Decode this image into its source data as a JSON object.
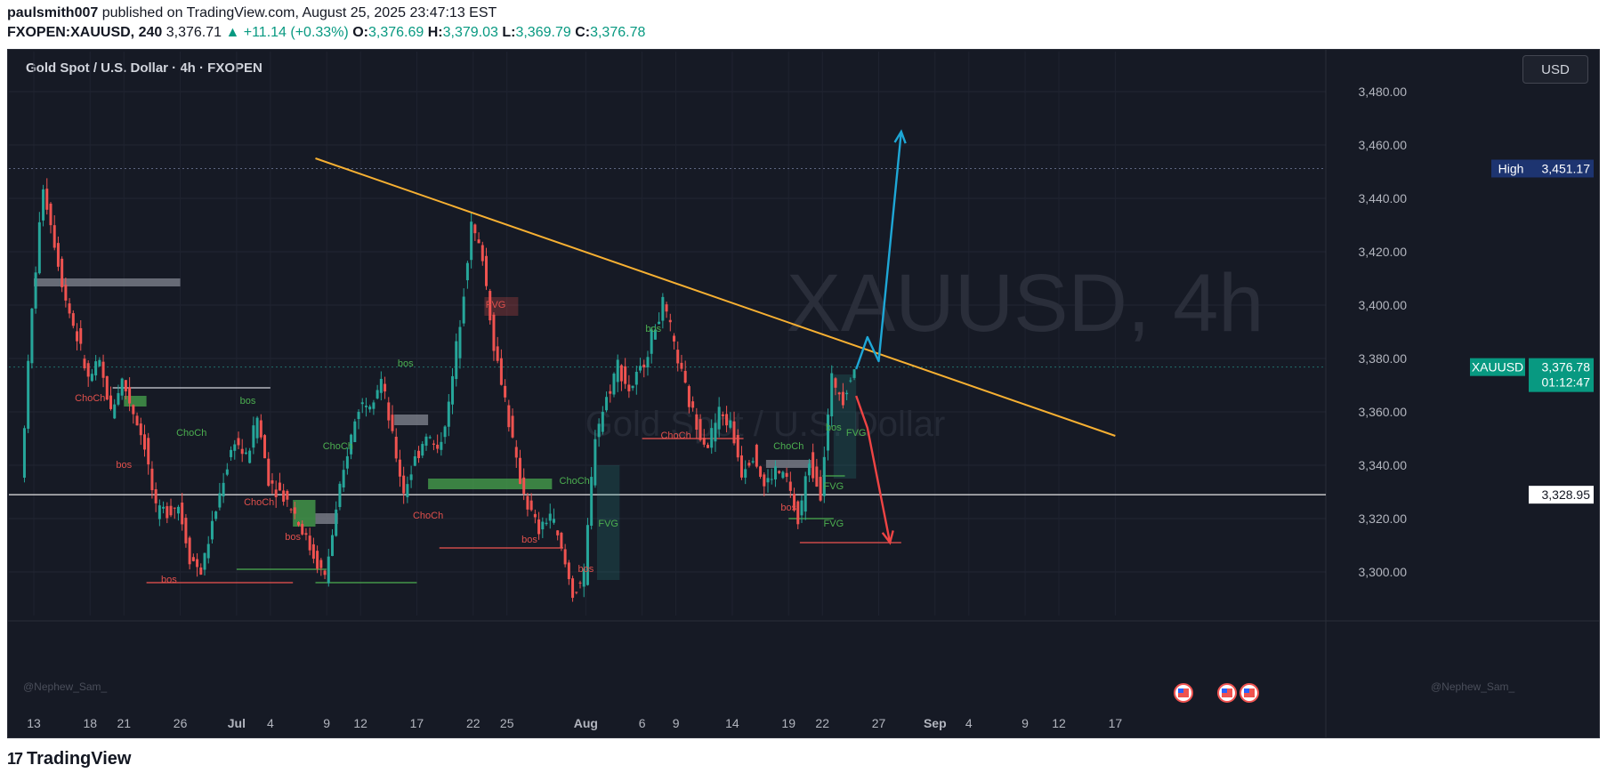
{
  "header": {
    "author": "paulsmith007",
    "published_text": "published on TradingView.com, August 25, 2025 23:47:13 EST",
    "symbol": "FXOPEN:XAUUSD, 240",
    "last": "3,376.71",
    "change": "▲ +11.14 (+0.33%)",
    "o_label": "O:",
    "o_val": "3,376.69",
    "h_label": "H:",
    "h_val": "3,379.03",
    "l_label": "L:",
    "l_val": "3,369.79",
    "c_label": "C:",
    "c_val": "3,376.78"
  },
  "chart_title": "Gold Spot / U.S. Dollar · 4h · FXOPEN",
  "currency_button": "USD",
  "watermark": {
    "symbol": "XAUUSD, 4h",
    "name": "Gold Spot / U.S. Dollar"
  },
  "author_tag_left": "@Nephew_Sam_",
  "author_tag_right": "@Nephew_Sam_",
  "footer": {
    "brand": "TradingView"
  },
  "colors": {
    "background": "#161a25",
    "up": "#26a69a",
    "down": "#ef5350",
    "trendline": "#f7b032",
    "arrow_up": "#1ea7d6",
    "arrow_down": "#ef4444",
    "structure_green": "#4caf50",
    "structure_red": "#e0504c"
  },
  "chart_data": {
    "type": "candlestick",
    "title": "Gold Spot / U.S. Dollar · 4h · FXOPEN",
    "y_axis": {
      "ticks": [
        3300,
        3320,
        3340,
        3360,
        3380,
        3400,
        3420,
        3440,
        3460,
        3480
      ],
      "tick_labels": [
        "3,300.00",
        "3,320.00",
        "3,340.00",
        "3,360.00",
        "3,380.00",
        "3,400.00",
        "3,420.00",
        "3,440.00",
        "3,460.00",
        "3,480.00"
      ],
      "range": [
        3290,
        3486
      ]
    },
    "x_axis": {
      "tick_labels": [
        "13",
        "18",
        "21",
        "26",
        "Jul",
        "4",
        "9",
        "12",
        "17",
        "22",
        "25",
        "Aug",
        "6",
        "9",
        "14",
        "19",
        "22",
        "27",
        "Sep",
        "4",
        "9",
        "12",
        "17"
      ],
      "range": [
        "Jun 12",
        "Sep 17"
      ]
    },
    "labels": {
      "high": {
        "text": "High",
        "value": "3,451.17"
      },
      "last_price": {
        "symbol": "XAUUSD",
        "value": "3,376.78",
        "countdown": "01:12:47"
      },
      "level": {
        "value": "3,328.95"
      }
    },
    "price_path": [
      [
        "Jun 12",
        3335
      ],
      [
        "Jun 13",
        3398
      ],
      [
        "Jun 14",
        3445
      ],
      [
        "Jun 16",
        3402
      ],
      [
        "Jun 17",
        3388
      ],
      [
        "Jun 18",
        3372
      ],
      [
        "Jun 19",
        3378
      ],
      [
        "Jun 20",
        3360
      ],
      [
        "Jun 21",
        3372
      ],
      [
        "Jun 23",
        3348
      ],
      [
        "Jun 24",
        3322
      ],
      [
        "Jun 26",
        3325
      ],
      [
        "Jun 27",
        3306
      ],
      [
        "Jun 28",
        3300
      ],
      [
        "Jun 30",
        3335
      ],
      [
        "Jul 1",
        3350
      ],
      [
        "Jul 2",
        3342
      ],
      [
        "Jul 3",
        3358
      ],
      [
        "Jul 4",
        3335
      ],
      [
        "Jul 6",
        3325
      ],
      [
        "Jul 8",
        3306
      ],
      [
        "Jul 9",
        3298
      ],
      [
        "Jul 10",
        3322
      ],
      [
        "Jul 11",
        3345
      ],
      [
        "Jul 12",
        3362
      ],
      [
        "Jul 13",
        3365
      ],
      [
        "Jul 14",
        3372
      ],
      [
        "Jul 15",
        3350
      ],
      [
        "Jul 16",
        3330
      ],
      [
        "Jul 17",
        3342
      ],
      [
        "Jul 18",
        3352
      ],
      [
        "Jul 19",
        3345
      ],
      [
        "Jul 20",
        3362
      ],
      [
        "Jul 21",
        3395
      ],
      [
        "Jul 22",
        3430
      ],
      [
        "Jul 23",
        3418
      ],
      [
        "Jul 24",
        3385
      ],
      [
        "Jul 25",
        3365
      ],
      [
        "Jul 26",
        3340
      ],
      [
        "Jul 27",
        3325
      ],
      [
        "Jul 28",
        3315
      ],
      [
        "Jul 29",
        3322
      ],
      [
        "Jul 30",
        3308
      ],
      [
        "Jul 31",
        3292
      ],
      [
        "Aug 1",
        3298
      ],
      [
        "Aug 2",
        3352
      ],
      [
        "Aug 3",
        3365
      ],
      [
        "Aug 4",
        3378
      ],
      [
        "Aug 5",
        3368
      ],
      [
        "Aug 6",
        3375
      ],
      [
        "Aug 7",
        3388
      ],
      [
        "Aug 8",
        3400
      ],
      [
        "Aug 9",
        3385
      ],
      [
        "Aug 10",
        3368
      ],
      [
        "Aug 11",
        3355
      ],
      [
        "Aug 12",
        3348
      ],
      [
        "Aug 13",
        3360
      ],
      [
        "Aug 14",
        3355
      ],
      [
        "Aug 15",
        3338
      ],
      [
        "Aug 16",
        3345
      ],
      [
        "Aug 17",
        3332
      ],
      [
        "Aug 18",
        3338
      ],
      [
        "Aug 19",
        3335
      ],
      [
        "Aug 20",
        3318
      ],
      [
        "Aug 21",
        3342
      ],
      [
        "Aug 22",
        3330
      ],
      [
        "Aug 23",
        3372
      ],
      [
        "Aug 24",
        3366
      ],
      [
        "Aug 25",
        3376.78
      ]
    ],
    "drawings": {
      "trendline": {
        "from": [
          "Jul 8",
          3455
        ],
        "to": [
          "Sep 17",
          3351
        ]
      },
      "projection_up": [
        [
          "Aug 25",
          3376
        ],
        [
          "Aug 26",
          3388
        ],
        [
          "Aug 27",
          3379
        ],
        [
          "Aug 29",
          3465
        ]
      ],
      "projection_down": [
        [
          "Aug 25",
          3366
        ],
        [
          "Aug 26",
          3354
        ],
        [
          "Aug 28",
          3311
        ]
      ],
      "high_line": 3451.17,
      "level_line": 3328.95
    },
    "annotations": [
      {
        "text": "ChoCh",
        "color": "red"
      },
      {
        "text": "bos",
        "color": "red"
      },
      {
        "text": "ChoCh",
        "color": "green"
      },
      {
        "text": "bos",
        "color": "green"
      },
      {
        "text": "ChoCh",
        "color": "red"
      },
      {
        "text": "bos",
        "color": "red"
      },
      {
        "text": "ChoCh",
        "color": "green"
      },
      {
        "text": "bos",
        "color": "red"
      },
      {
        "text": "bos",
        "color": "green"
      },
      {
        "text": "ChoCh",
        "color": "red"
      },
      {
        "text": "FVG",
        "color": "red"
      },
      {
        "text": "bos",
        "color": "red"
      },
      {
        "text": "bos",
        "color": "red"
      },
      {
        "text": "ChoCh",
        "color": "green"
      },
      {
        "text": "FVG",
        "color": "green"
      },
      {
        "text": "bos",
        "color": "green"
      },
      {
        "text": "ChoCh",
        "color": "red"
      },
      {
        "text": "ChoCh",
        "color": "green"
      },
      {
        "text": "bos",
        "color": "green"
      },
      {
        "text": "bos",
        "color": "red"
      },
      {
        "text": "FVG",
        "color": "green"
      },
      {
        "text": "FVG",
        "color": "green"
      },
      {
        "text": "FVG",
        "color": "green"
      }
    ]
  }
}
